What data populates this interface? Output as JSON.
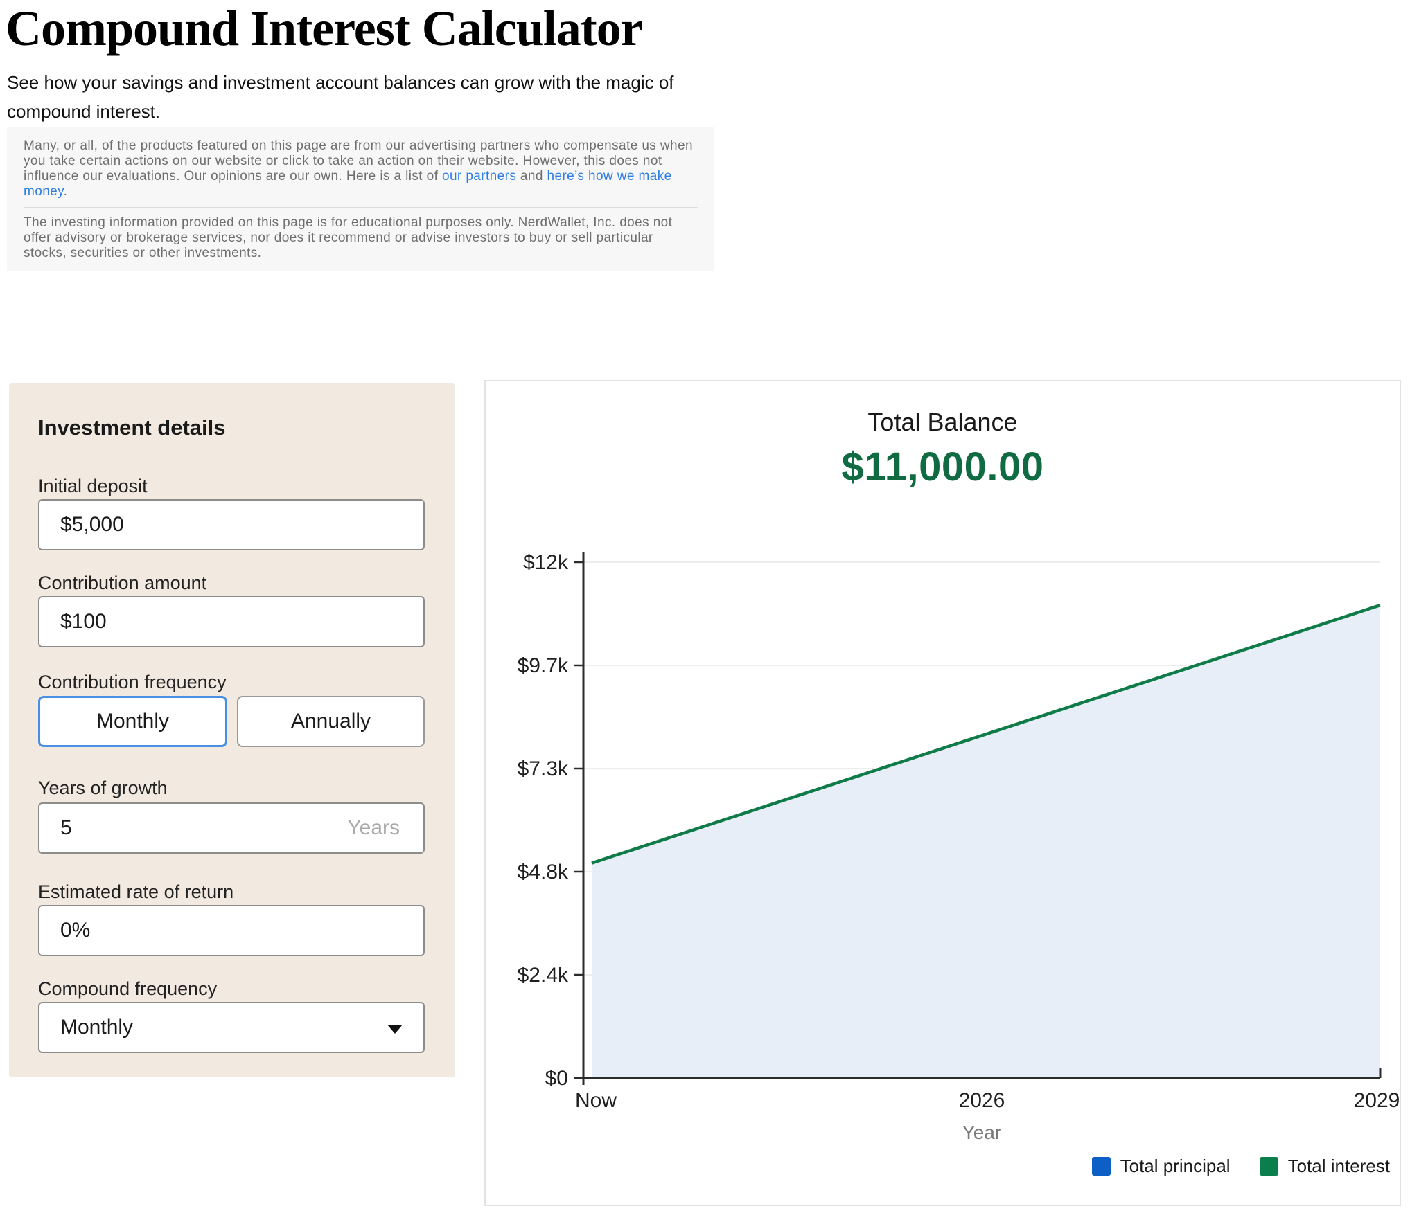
{
  "page": {
    "title": "Compound Interest Calculator",
    "subtitle": "See how your savings and investment account balances can grow with the magic of compound interest."
  },
  "disclaimer": {
    "p1_before": "Many, or all, of the products featured on this page are from our advertising partners who compensate us when you take certain actions on our website or click to take an action on their website. However, this does not influence our evaluations. Our opinions are our own. Here is a list of ",
    "link_partners": "our partners",
    "p1_and": " and ",
    "link_money": "here’s how we make money",
    "p1_end": ".",
    "p2": "The investing information provided on this page is for educational purposes only. NerdWallet, Inc. does not offer advisory or brokerage services, nor does it recommend or advise investors to buy or sell particular stocks, securities or other investments."
  },
  "form": {
    "heading": "Investment details",
    "initial_deposit": {
      "label": "Initial deposit",
      "value": "$5,000"
    },
    "contribution_amount": {
      "label": "Contribution amount",
      "value": "$100"
    },
    "contribution_frequency": {
      "label": "Contribution frequency",
      "options": [
        "Monthly",
        "Annually"
      ],
      "selected": "Monthly"
    },
    "years_of_growth": {
      "label": "Years of growth",
      "value": "5",
      "suffix": "Years"
    },
    "rate_of_return": {
      "label": "Estimated rate of return",
      "value": "0%"
    },
    "compound_frequency": {
      "label": "Compound frequency",
      "value": "Monthly"
    }
  },
  "chart_data": {
    "type": "area",
    "title": "Total Balance",
    "balance_label": "$11,000.00",
    "balance_color": "#116b42",
    "xlabel": "Year",
    "x_tick_labels": [
      "Now",
      "2026",
      "2029"
    ],
    "y_tick_labels": [
      "$0",
      "$2.4k",
      "$4.8k",
      "$7.3k",
      "$9.7k",
      "$12k"
    ],
    "ylim": [
      0,
      12000
    ],
    "x_years": [
      0,
      1,
      2,
      3,
      4,
      5
    ],
    "total_balance": [
      5000,
      6200,
      7400,
      8600,
      9800,
      11000
    ],
    "series": [
      {
        "name": "Total principal",
        "color": "#0d5fc6",
        "values": [
          5000,
          6200,
          7400,
          8600,
          9800,
          11000
        ]
      },
      {
        "name": "Total interest",
        "color": "#0b7e4e",
        "values": [
          0,
          0,
          0,
          0,
          0,
          0
        ]
      }
    ],
    "area_fill": "#e8eef8",
    "line_color": "#0f7b48",
    "grid": true,
    "legend_position": "bottom-right"
  }
}
